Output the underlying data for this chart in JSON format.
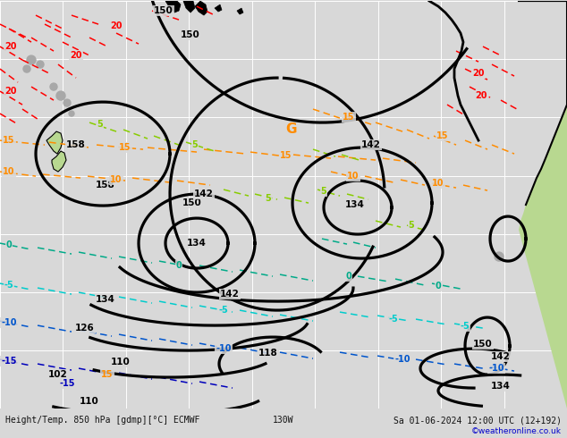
{
  "title_left": "Height/Temp. 850 hPa [gdmp][°C] ECMWF",
  "title_center": "130W",
  "title_right": "Sa 01-06-2024 12:00 UTC (12+192)",
  "copyright": "©weatheronline.co.uk",
  "bg_color": "#d8d8d8",
  "water_color": "#d8d8d8",
  "grid_color": "#c0c0c0",
  "land_green": "#b8d890",
  "land_gray": "#a8a8a8",
  "black": "#000000",
  "red": "#ff0000",
  "orange": "#ff8c00",
  "dark_orange": "#ff6600",
  "yellow_orange": "#ffaa00",
  "green": "#44bb00",
  "teal": "#00aa88",
  "cyan": "#00cccc",
  "blue": "#0044ff",
  "dark_blue": "#0000cc",
  "bottom_bar": "#b0b0b0"
}
